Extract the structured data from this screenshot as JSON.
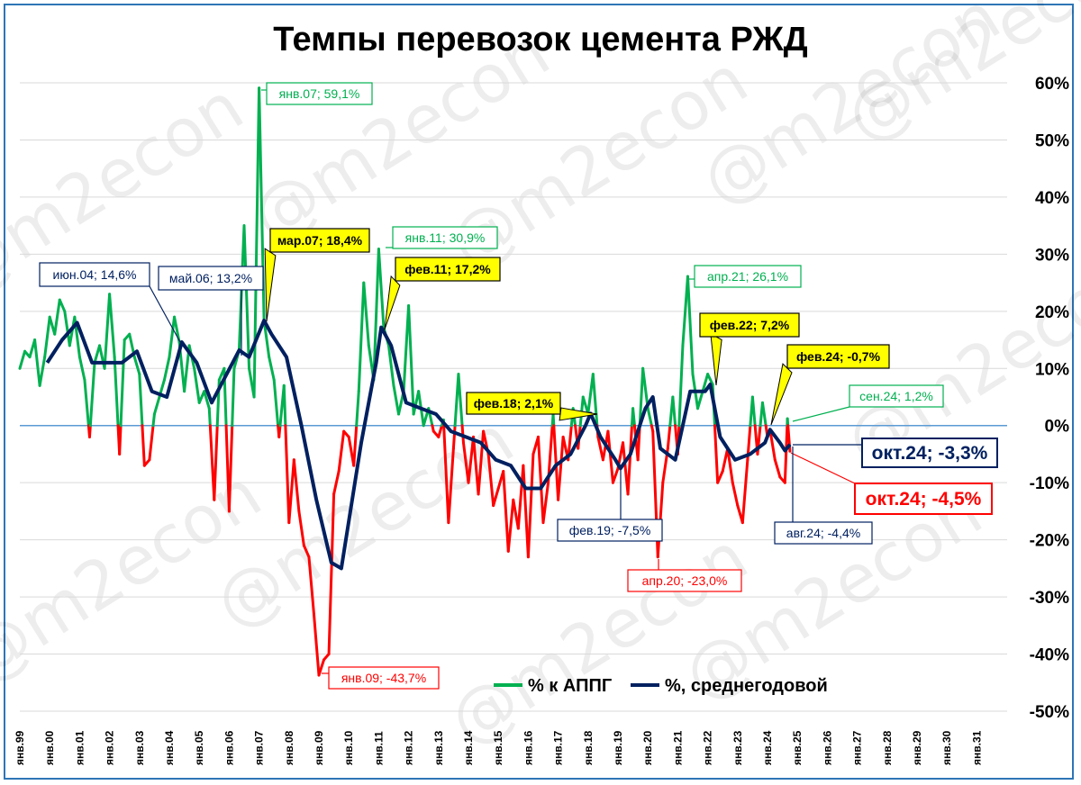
{
  "chart_data": {
    "type": "line",
    "title": "Темпы перевозок цемента РЖД",
    "watermark": "@m2econ",
    "ylim": [
      -50,
      60
    ],
    "yticks": [
      "60%",
      "50%",
      "40%",
      "30%",
      "20%",
      "10%",
      "0%",
      "-10%",
      "-20%",
      "-30%",
      "-40%",
      "-50%"
    ],
    "xticks": [
      "янв.99",
      "янв.00",
      "янв.01",
      "янв.02",
      "янв.03",
      "янв.04",
      "янв.05",
      "янв.06",
      "янв.07",
      "янв.08",
      "янв.09",
      "янв.10",
      "янв.11",
      "янв.12",
      "янв.13",
      "янв.14",
      "янв.15",
      "янв.16",
      "янв.17",
      "янв.18",
      "янв.19",
      "янв.20",
      "янв.21",
      "янв.22",
      "янв.23",
      "янв.24",
      "янв.25",
      "янв.26",
      "янв.27",
      "янв.28",
      "янв.29",
      "янв.30",
      "янв.31"
    ],
    "x_range": [
      "янв.99",
      "янв.32"
    ],
    "grid": "horizontal",
    "legend_position": "bottom-right",
    "colors": {
      "positive": "#00b050",
      "negative": "#ff0000",
      "average": "#002060",
      "callout_fill": "#ffff00",
      "frame": "#2e75b6"
    },
    "series": [
      {
        "name": "% к АППГ",
        "color_rule": "green above 0, red below 0",
        "points": [
          [
            "1999-01",
            10
          ],
          [
            "1999-03",
            13
          ],
          [
            "1999-05",
            12
          ],
          [
            "1999-07",
            15
          ],
          [
            "1999-09",
            7
          ],
          [
            "1999-11",
            12
          ],
          [
            "2000-01",
            19
          ],
          [
            "2000-03",
            16
          ],
          [
            "2000-05",
            22
          ],
          [
            "2000-07",
            20
          ],
          [
            "2000-09",
            14
          ],
          [
            "2000-11",
            19
          ],
          [
            "2001-01",
            12
          ],
          [
            "2001-03",
            8
          ],
          [
            "2001-05",
            -2
          ],
          [
            "2001-07",
            11
          ],
          [
            "2001-09",
            14
          ],
          [
            "2001-11",
            10
          ],
          [
            "2002-01",
            23
          ],
          [
            "2002-03",
            12
          ],
          [
            "2002-05",
            -5
          ],
          [
            "2002-07",
            15
          ],
          [
            "2002-09",
            16
          ],
          [
            "2002-11",
            12
          ],
          [
            "2003-01",
            9
          ],
          [
            "2003-03",
            -7
          ],
          [
            "2003-05",
            -6
          ],
          [
            "2003-07",
            2
          ],
          [
            "2003-09",
            5
          ],
          [
            "2003-11",
            8
          ],
          [
            "2004-01",
            12
          ],
          [
            "2004-03",
            19
          ],
          [
            "2004-05",
            14.6
          ],
          [
            "2004-07",
            6
          ],
          [
            "2004-09",
            14
          ],
          [
            "2004-11",
            10
          ],
          [
            "2005-01",
            4
          ],
          [
            "2005-03",
            6
          ],
          [
            "2005-05",
            3
          ],
          [
            "2005-07",
            -13
          ],
          [
            "2005-09",
            8
          ],
          [
            "2005-11",
            10
          ],
          [
            "2006-01",
            -15
          ],
          [
            "2006-03",
            10
          ],
          [
            "2006-05",
            13.2
          ],
          [
            "2006-07",
            35
          ],
          [
            "2006-09",
            10
          ],
          [
            "2006-11",
            5
          ],
          [
            "2007-01",
            59.1
          ],
          [
            "2007-03",
            18.4
          ],
          [
            "2007-05",
            12
          ],
          [
            "2007-07",
            8
          ],
          [
            "2007-09",
            -2
          ],
          [
            "2007-11",
            7
          ],
          [
            "2008-01",
            -17
          ],
          [
            "2008-03",
            -6
          ],
          [
            "2008-05",
            -15
          ],
          [
            "2008-07",
            -21
          ],
          [
            "2008-09",
            -23
          ],
          [
            "2008-11",
            -33
          ],
          [
            "2009-01",
            -43.7
          ],
          [
            "2009-03",
            -41
          ],
          [
            "2009-05",
            -40
          ],
          [
            "2009-07",
            -12
          ],
          [
            "2009-09",
            -8
          ],
          [
            "2009-11",
            -1
          ],
          [
            "2010-01",
            -2
          ],
          [
            "2010-03",
            -7
          ],
          [
            "2010-05",
            6
          ],
          [
            "2010-07",
            25
          ],
          [
            "2010-09",
            14
          ],
          [
            "2010-11",
            8
          ],
          [
            "2011-01",
            30.9
          ],
          [
            "2011-03",
            17.2
          ],
          [
            "2011-05",
            14
          ],
          [
            "2011-07",
            7
          ],
          [
            "2011-09",
            2
          ],
          [
            "2011-11",
            6
          ],
          [
            "2012-01",
            21
          ],
          [
            "2012-03",
            2
          ],
          [
            "2012-05",
            6
          ],
          [
            "2012-07",
            0
          ],
          [
            "2012-09",
            3
          ],
          [
            "2012-11",
            -1
          ],
          [
            "2013-01",
            -2
          ],
          [
            "2013-03",
            1
          ],
          [
            "2013-05",
            -17
          ],
          [
            "2013-07",
            -4
          ],
          [
            "2013-09",
            9
          ],
          [
            "2013-11",
            -3
          ],
          [
            "2014-01",
            -10
          ],
          [
            "2014-03",
            -2
          ],
          [
            "2014-05",
            -12
          ],
          [
            "2014-07",
            -1
          ],
          [
            "2014-09",
            -5
          ],
          [
            "2014-11",
            -14
          ],
          [
            "2015-01",
            -11
          ],
          [
            "2015-03",
            -8
          ],
          [
            "2015-05",
            -22
          ],
          [
            "2015-07",
            -13
          ],
          [
            "2015-09",
            -18
          ],
          [
            "2015-11",
            -7
          ],
          [
            "2016-01",
            -23
          ],
          [
            "2016-03",
            -5
          ],
          [
            "2016-05",
            -2
          ],
          [
            "2016-07",
            -17
          ],
          [
            "2016-09",
            -10
          ],
          [
            "2016-11",
            2
          ],
          [
            "2017-01",
            -13
          ],
          [
            "2017-03",
            -2
          ],
          [
            "2017-05",
            -6
          ],
          [
            "2017-07",
            3
          ],
          [
            "2017-09",
            -4
          ],
          [
            "2017-11",
            5
          ],
          [
            "2018-01",
            2.1
          ],
          [
            "2018-03",
            9
          ],
          [
            "2018-05",
            -2
          ],
          [
            "2018-07",
            -6
          ],
          [
            "2018-09",
            -1
          ],
          [
            "2018-11",
            -10
          ],
          [
            "2019-01",
            -7.5
          ],
          [
            "2019-03",
            -3
          ],
          [
            "2019-05",
            -12
          ],
          [
            "2019-07",
            3
          ],
          [
            "2019-09",
            -6
          ],
          [
            "2019-11",
            10
          ],
          [
            "2020-01",
            3
          ],
          [
            "2020-03",
            -1
          ],
          [
            "2020-05",
            -23
          ],
          [
            "2020-07",
            -10
          ],
          [
            "2020-09",
            -4
          ],
          [
            "2020-11",
            5
          ],
          [
            "2021-01",
            -5
          ],
          [
            "2021-03",
            14
          ],
          [
            "2021-05",
            26.1
          ],
          [
            "2021-07",
            9
          ],
          [
            "2021-09",
            3
          ],
          [
            "2021-11",
            6
          ],
          [
            "2022-01",
            9
          ],
          [
            "2022-03",
            7.2
          ],
          [
            "2022-05",
            -10
          ],
          [
            "2022-07",
            -8
          ],
          [
            "2022-09",
            -4
          ],
          [
            "2022-11",
            -10
          ],
          [
            "2023-01",
            -14
          ],
          [
            "2023-03",
            -17
          ],
          [
            "2023-05",
            -6
          ],
          [
            "2023-07",
            5
          ],
          [
            "2023-09",
            -5
          ],
          [
            "2023-11",
            4
          ],
          [
            "2024-01",
            -2
          ],
          [
            "2024-02",
            -0.7
          ],
          [
            "2024-04",
            -6
          ],
          [
            "2024-06",
            -9
          ],
          [
            "2024-08",
            -10
          ],
          [
            "2024-09",
            1.2
          ],
          [
            "2024-10",
            -4.5
          ]
        ]
      },
      {
        "name": "%, среднегодовой",
        "color": "#002060",
        "points": [
          [
            "1999-12",
            11
          ],
          [
            "2000-06",
            15
          ],
          [
            "2000-12",
            18
          ],
          [
            "2001-06",
            11
          ],
          [
            "2001-12",
            11
          ],
          [
            "2002-06",
            11
          ],
          [
            "2002-12",
            13
          ],
          [
            "2003-06",
            6
          ],
          [
            "2003-12",
            5
          ],
          [
            "2004-06",
            14.6
          ],
          [
            "2004-12",
            11
          ],
          [
            "2005-06",
            4
          ],
          [
            "2005-12",
            9
          ],
          [
            "2006-05",
            13.2
          ],
          [
            "2006-09",
            12
          ],
          [
            "2007-03",
            18.4
          ],
          [
            "2007-06",
            16
          ],
          [
            "2007-12",
            12
          ],
          [
            "2008-06",
            0
          ],
          [
            "2008-12",
            -13
          ],
          [
            "2009-06",
            -24
          ],
          [
            "2009-10",
            -25
          ],
          [
            "2010-06",
            -3
          ],
          [
            "2010-12",
            11
          ],
          [
            "2011-02",
            17.2
          ],
          [
            "2011-06",
            14
          ],
          [
            "2011-12",
            4
          ],
          [
            "2012-06",
            3
          ],
          [
            "2012-12",
            2
          ],
          [
            "2013-06",
            -1
          ],
          [
            "2013-12",
            -2
          ],
          [
            "2014-06",
            -3
          ],
          [
            "2014-12",
            -6
          ],
          [
            "2015-06",
            -7
          ],
          [
            "2015-12",
            -11
          ],
          [
            "2016-06",
            -11
          ],
          [
            "2016-12",
            -7
          ],
          [
            "2017-06",
            -5
          ],
          [
            "2017-12",
            0
          ],
          [
            "2018-02",
            2.1
          ],
          [
            "2018-06",
            -2
          ],
          [
            "2018-12",
            -6
          ],
          [
            "2019-02",
            -7.5
          ],
          [
            "2019-06",
            -5
          ],
          [
            "2019-12",
            3
          ],
          [
            "2020-03",
            5
          ],
          [
            "2020-06",
            -4
          ],
          [
            "2020-12",
            -6
          ],
          [
            "2021-06",
            6
          ],
          [
            "2021-12",
            6
          ],
          [
            "2022-02",
            7.2
          ],
          [
            "2022-06",
            -2
          ],
          [
            "2022-12",
            -6
          ],
          [
            "2023-06",
            -5
          ],
          [
            "2023-12",
            -3
          ],
          [
            "2024-02",
            -0.7
          ],
          [
            "2024-06",
            -3
          ],
          [
            "2024-08",
            -4.4
          ],
          [
            "2024-10",
            -3.3
          ]
        ]
      }
    ],
    "annotations": [
      {
        "text": "янв.07; 59,1%",
        "style": "green"
      },
      {
        "text": "мар.07; 18,4%",
        "style": "yellow"
      },
      {
        "text": "июн.04; 14,6%",
        "style": "navy"
      },
      {
        "text": "май.06; 13,2%",
        "style": "navy"
      },
      {
        "text": "янв.11; 30,9%",
        "style": "green"
      },
      {
        "text": "фев.11; 17,2%",
        "style": "yellow"
      },
      {
        "text": "фев.18; 2,1%",
        "style": "yellow"
      },
      {
        "text": "апр.21; 26,1%",
        "style": "green"
      },
      {
        "text": "фев.22; 7,2%",
        "style": "yellow"
      },
      {
        "text": "фев.24; -0,7%",
        "style": "yellow"
      },
      {
        "text": "сен.24; 1,2%",
        "style": "green"
      },
      {
        "text": "окт.24; -3,3%",
        "style": "navy-big"
      },
      {
        "text": "окт.24; -4,5%",
        "style": "red-big"
      },
      {
        "text": "фев.19; -7,5%",
        "style": "navy"
      },
      {
        "text": "авг.24; -4,4%",
        "style": "navy"
      },
      {
        "text": "апр.20; -23,0%",
        "style": "red"
      },
      {
        "text": "янв.09; -43,7%",
        "style": "red"
      }
    ]
  }
}
